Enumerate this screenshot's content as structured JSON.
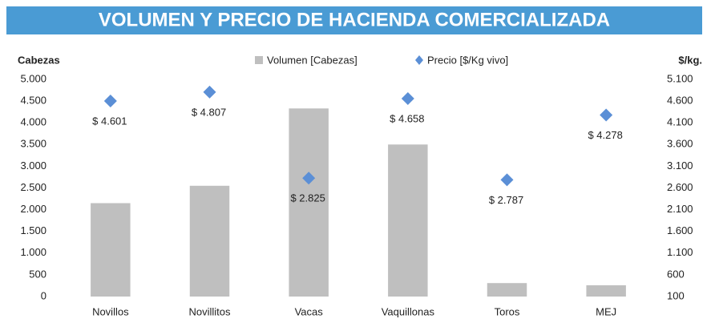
{
  "chart_data": {
    "type": "bar",
    "title": "VOLUMEN Y PRECIO DE HACIENDA COMERCIALIZADA",
    "y_label": "Cabezas",
    "y2_label": "$/kg.",
    "categories": [
      "Novillos",
      "Novillitos",
      "Vacas",
      "Vaquillonas",
      "Toros",
      "MEJ"
    ],
    "series": [
      {
        "name": "Volumen [Cabezas]",
        "type": "bar",
        "color": "#bfbfbf",
        "values": [
          2150,
          2550,
          4330,
          3500,
          310,
          260
        ]
      },
      {
        "name": "Precio [$/Kg vivo]",
        "type": "scatter",
        "axis": "y2",
        "color": "#5b8fd6",
        "values": [
          4601,
          4807,
          2825,
          4658,
          2787,
          4278
        ],
        "value_labels": [
          "$ 4.601",
          "$ 4.807",
          "$ 2.825",
          "$ 4.658",
          "$ 2.787",
          "$ 4.278"
        ]
      }
    ],
    "ylim": [
      0,
      5000
    ],
    "yticks": [
      0,
      500,
      {
        "value": 1000,
        "label": "1.000"
      },
      {
        "value": 1500,
        "label": "1.500"
      },
      {
        "value": 2000,
        "label": "2.000"
      },
      {
        "value": 2500,
        "label": "2.500"
      },
      {
        "value": 3000,
        "label": "3.000"
      },
      {
        "value": 3500,
        "label": "3.500"
      },
      {
        "value": 4000,
        "label": "4.000"
      },
      {
        "value": 4500,
        "label": "4.500"
      },
      {
        "value": 5000,
        "label": "5.000"
      }
    ],
    "y2lim": [
      100,
      5100
    ],
    "y2ticks": [
      100,
      600,
      {
        "value": 1100,
        "label": "1.100"
      },
      {
        "value": 1600,
        "label": "1.600"
      },
      {
        "value": 2100,
        "label": "2.100"
      },
      {
        "value": 2600,
        "label": "2.600"
      },
      {
        "value": 3100,
        "label": "3.100"
      },
      {
        "value": 3600,
        "label": "3.600"
      },
      {
        "value": 4100,
        "label": "4.100"
      },
      {
        "value": 4600,
        "label": "4.600"
      },
      {
        "value": 5100,
        "label": "5.100"
      }
    ],
    "legend": "top"
  }
}
